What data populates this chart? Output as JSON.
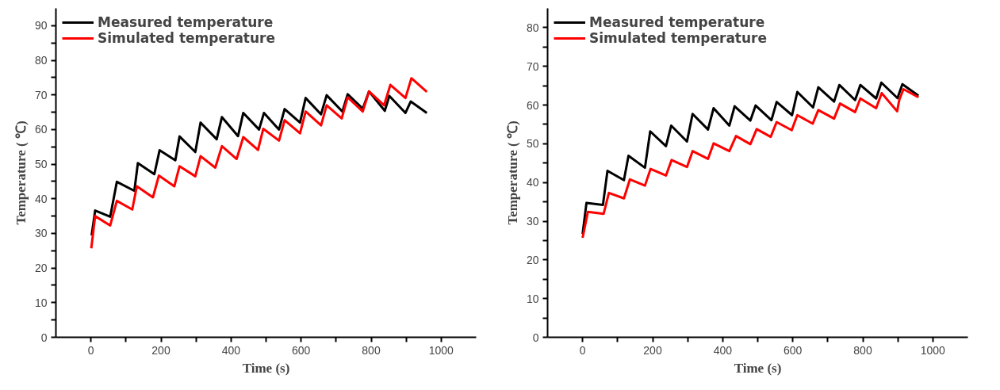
{
  "chart_data": [
    {
      "type": "line",
      "xlabel": "Time (s)",
      "ylabel": "Temperature ( ℃)",
      "legend": "top left",
      "grid": false,
      "line_style": "solid",
      "xlim": [
        -100,
        1100
      ],
      "ylim": [
        0,
        95
      ],
      "xticks": [
        0,
        {
          "value": 100,
          "label": null
        },
        200,
        {
          "value": 300,
          "label": null
        },
        400,
        {
          "value": 500,
          "label": null
        },
        600,
        {
          "value": 700,
          "label": null
        },
        800,
        {
          "value": 900,
          "label": null
        },
        1000
      ],
      "yticks": [
        0,
        {
          "value": 5,
          "label": null
        },
        10,
        {
          "value": 15,
          "label": null
        },
        20,
        {
          "value": 25,
          "label": null
        },
        30,
        {
          "value": 35,
          "label": null
        },
        40,
        {
          "value": 45,
          "label": null
        },
        50,
        {
          "value": 55,
          "label": null
        },
        60,
        {
          "value": 65,
          "label": null
        },
        70,
        {
          "value": 75,
          "label": null
        },
        80,
        {
          "value": 85,
          "label": null
        },
        90
      ],
      "series": [
        {
          "name": "Measured temperature",
          "color": "#000000",
          "x": [
            2,
            12,
            55,
            74,
            124,
            134,
            181,
            196,
            241,
            253,
            298,
            313,
            359,
            374,
            420,
            435,
            480,
            494,
            537,
            553,
            597,
            613,
            657,
            673,
            718,
            733,
            776,
            794,
            839,
            852,
            898,
            913,
            959
          ],
          "values": [
            29.4,
            36.6,
            34.8,
            44.9,
            42.3,
            50.3,
            47.1,
            54,
            51.1,
            58,
            53.5,
            62,
            57.2,
            63.6,
            58.1,
            64.8,
            60,
            64.8,
            60,
            65.9,
            62,
            69.1,
            64.4,
            69.9,
            65.2,
            70.2,
            66,
            71,
            65.4,
            69.7,
            64.8,
            68.1,
            64.8
          ]
        },
        {
          "name": "Simulated temperature",
          "color": "#ff0000",
          "x": [
            1,
            12,
            55,
            74,
            118,
            131,
            177,
            194,
            238,
            253,
            298,
            313,
            355,
            374,
            416,
            435,
            477,
            492,
            537,
            553,
            597,
            613,
            657,
            673,
            716,
            733,
            776,
            794,
            837,
            855,
            898,
            915,
            959
          ],
          "values": [
            25.7,
            35,
            32.3,
            39.4,
            36.9,
            43.6,
            40.4,
            46.7,
            43.6,
            49.4,
            46.5,
            52.3,
            49,
            55.2,
            51.5,
            57.8,
            54.1,
            60.2,
            56.8,
            62.7,
            58.9,
            65.2,
            61.2,
            67,
            63.2,
            69.3,
            65.2,
            71,
            67,
            72.9,
            69.1,
            74.8,
            70.9
          ]
        }
      ]
    },
    {
      "type": "line",
      "xlabel": "Time (s)",
      "ylabel": "Temperature ( ℃)",
      "legend": "top left",
      "grid": false,
      "line_style": "solid",
      "xlim": [
        -100,
        1100
      ],
      "ylim": [
        0,
        85
      ],
      "xticks": [
        0,
        {
          "value": 100,
          "label": null
        },
        200,
        {
          "value": 300,
          "label": null
        },
        400,
        {
          "value": 500,
          "label": null
        },
        600,
        {
          "value": 700,
          "label": null
        },
        800,
        {
          "value": 900,
          "label": null
        },
        1000
      ],
      "yticks": [
        0,
        {
          "value": 5,
          "label": null
        },
        10,
        {
          "value": 15,
          "label": null
        },
        20,
        {
          "value": 25,
          "label": null
        },
        30,
        {
          "value": 35,
          "label": null
        },
        40,
        {
          "value": 45,
          "label": null
        },
        50,
        {
          "value": 55,
          "label": null
        },
        60,
        {
          "value": 65,
          "label": null
        },
        70,
        {
          "value": 75,
          "label": null
        },
        80
      ],
      "series": [
        {
          "name": "Measured temperature",
          "color": "#000000",
          "x": [
            0,
            11,
            58,
            71,
            118,
            131,
            178,
            193,
            238,
            253,
            298,
            314,
            358,
            374,
            419,
            434,
            479,
            494,
            539,
            554,
            598,
            613,
            658,
            673,
            718,
            733,
            778,
            793,
            838,
            853,
            899,
            913,
            959
          ],
          "values": [
            26.7,
            34.7,
            34.2,
            43,
            40.6,
            46.9,
            43.8,
            53.2,
            49.4,
            54.7,
            50.6,
            57.7,
            53.7,
            59.2,
            54.7,
            59.7,
            56,
            59.9,
            56.1,
            60.8,
            57.4,
            63.4,
            59.4,
            64.6,
            60.9,
            65.2,
            61.3,
            65.2,
            61.7,
            65.8,
            61.8,
            65.4,
            62.4
          ]
        },
        {
          "name": "Simulated temperature",
          "color": "#ff0000",
          "x": [
            0,
            15,
            60,
            75,
            118,
            135,
            178,
            194,
            238,
            254,
            298,
            314,
            358,
            374,
            419,
            438,
            479,
            497,
            537,
            554,
            597,
            613,
            657,
            673,
            718,
            735,
            778,
            793,
            838,
            854,
            898,
            904,
            916,
            959
          ],
          "values": [
            25.7,
            32.4,
            31.9,
            37.3,
            35.9,
            40.8,
            39.2,
            43.5,
            41.8,
            45.8,
            44,
            48.1,
            46.1,
            50.1,
            48.1,
            52,
            49.9,
            53.8,
            51.8,
            55.6,
            53.5,
            57.4,
            55.2,
            58.7,
            56.5,
            60.4,
            58.2,
            61.7,
            59.2,
            63.1,
            58.4,
            61.3,
            64.1,
            62
          ]
        }
      ]
    }
  ]
}
